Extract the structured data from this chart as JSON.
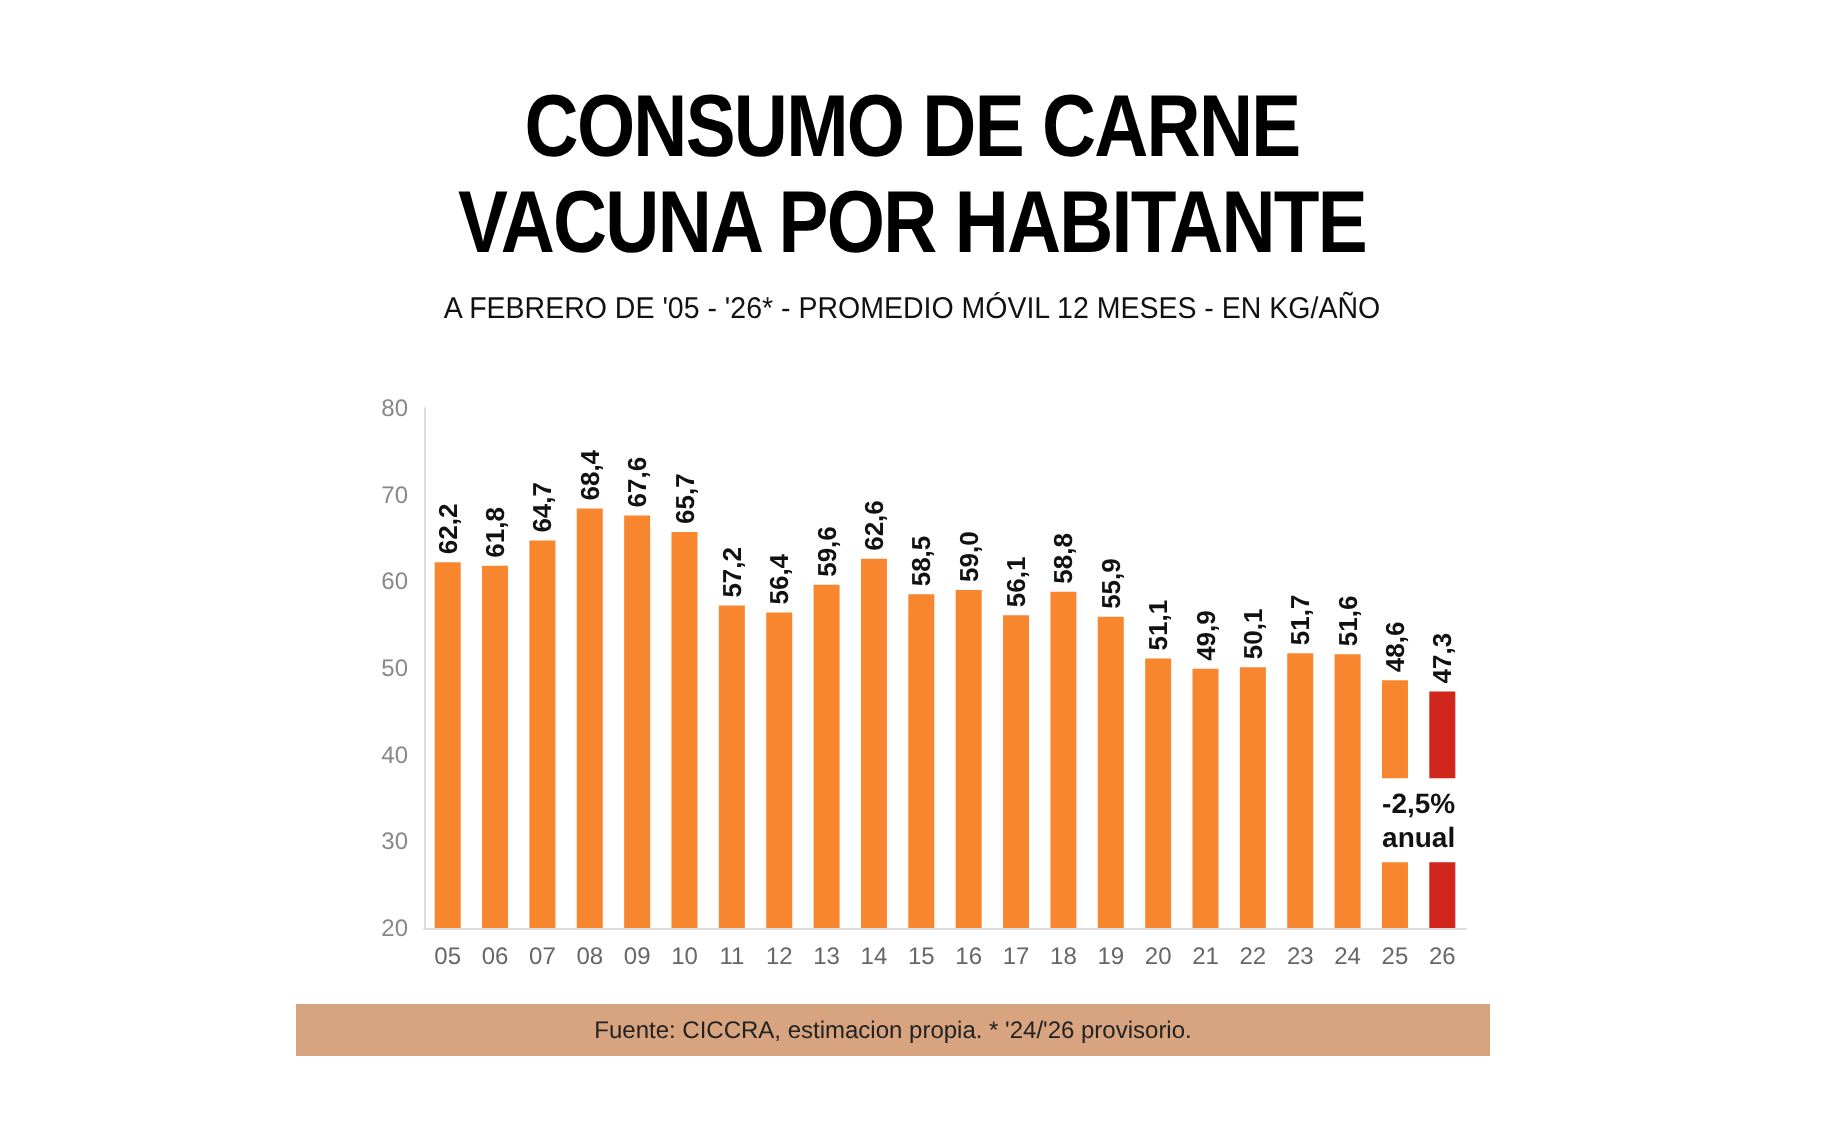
{
  "chart_data": {
    "type": "bar",
    "title": "CONSUMO DE CARNE\nVACUNA POR HABITANTE",
    "subtitle": "A FEBRERO DE '05 - '26* - PROMEDIO MÓVIL 12 MESES - EN KG/AÑO",
    "categories": [
      "05",
      "06",
      "07",
      "08",
      "09",
      "10",
      "11",
      "12",
      "13",
      "14",
      "15",
      "16",
      "17",
      "18",
      "19",
      "20",
      "21",
      "22",
      "23",
      "24",
      "25",
      "26"
    ],
    "values": [
      62.2,
      61.8,
      64.7,
      68.4,
      67.6,
      65.7,
      57.2,
      56.4,
      59.6,
      62.6,
      58.5,
      59.0,
      56.1,
      58.8,
      55.9,
      51.1,
      49.9,
      50.1,
      51.7,
      51.6,
      48.6,
      47.3
    ],
    "value_labels": [
      "62,2",
      "61,8",
      "64,7",
      "68,4",
      "67,6",
      "65,7",
      "57,2",
      "56,4",
      "59,6",
      "62,6",
      "58,5",
      "59,0",
      "56,1",
      "58,8",
      "55,9",
      "51,1",
      "49,9",
      "50,1",
      "51,7",
      "51,6",
      "48,6",
      "47,3"
    ],
    "colors": [
      "#f7862e",
      "#f7862e",
      "#f7862e",
      "#f7862e",
      "#f7862e",
      "#f7862e",
      "#f7862e",
      "#f7862e",
      "#f7862e",
      "#f7862e",
      "#f7862e",
      "#f7862e",
      "#f7862e",
      "#f7862e",
      "#f7862e",
      "#f7862e",
      "#f7862e",
      "#f7862e",
      "#f7862e",
      "#f7862e",
      "#f7862e",
      "#d0261c"
    ],
    "ylim": [
      20,
      80
    ],
    "yticks": [
      20,
      30,
      40,
      50,
      60,
      70,
      80
    ],
    "grid": false,
    "annotations": [
      "-2,5%\nanual",
      "Fuente: CICCRA, estimacion propia. * '24/'26 provisorio."
    ]
  }
}
